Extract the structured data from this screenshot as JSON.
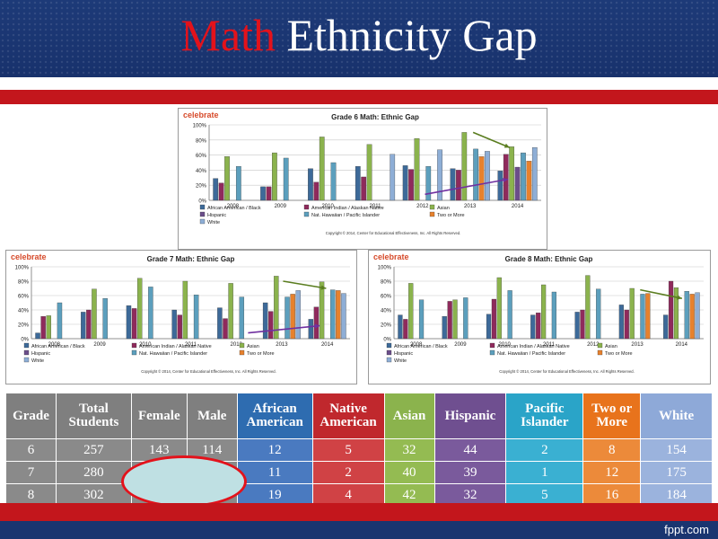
{
  "slide": {
    "title_accent": "Math",
    "title_rest": "Ethnicity Gap",
    "footer": "fppt.com"
  },
  "colors": {
    "title_accent": "#e3121b",
    "band": "#1a3570",
    "bar_red": "#c3161c",
    "series": [
      "#3d6a99",
      "#8f2a5c",
      "#8bb34d",
      "#6b4e8a",
      "#5c9fbd",
      "#e7812d",
      "#8eaed6"
    ],
    "table_header": [
      "#7f7f7f",
      "#7f7f7f",
      "#7f7f7f",
      "#7f7f7f",
      "#2e6cb0",
      "#c0282d",
      "#8bb34d",
      "#6f4f90",
      "#2aa4c8",
      "#e8731c",
      "#8ea9d8"
    ],
    "table_body": [
      "#8a8a8a",
      "#8a8a8a",
      "#8a8a8a",
      "#8a8a8a",
      "#4a7ac0",
      "#d04245",
      "#94bb52",
      "#7a5a9c",
      "#3ab0d2",
      "#ec8a3a",
      "#9bb3dd"
    ]
  },
  "chart_data": [
    {
      "type": "bar",
      "logo": "celebrate",
      "title": "Grade 6 Math: Ethnic Gap",
      "copyright": "Copyright © 2014, Center for Educational Effectiveness, Inc. All Rights Reserved.",
      "categories": [
        "2008",
        "2009",
        "2010",
        "2011",
        "2012",
        "2013",
        "2014"
      ],
      "yticks": [
        "0%",
        "20%",
        "40%",
        "60%",
        "80%",
        "100%"
      ],
      "ylim": [
        0,
        100
      ],
      "legend_position": "bottom",
      "series": [
        {
          "name": "African American / Black",
          "values": [
            29,
            18,
            42,
            45,
            46,
            42,
            39
          ]
        },
        {
          "name": "American Indian / Alaskan Native",
          "values": [
            23,
            18,
            24,
            31,
            41,
            40,
            61
          ]
        },
        {
          "name": "Asian",
          "values": [
            58,
            63,
            84,
            74,
            82,
            90,
            71
          ]
        },
        {
          "name": "Hispanic",
          "values": [
            0,
            0,
            0,
            0,
            0,
            0,
            44
          ]
        },
        {
          "name": "Nat. Hawaiian / Pacific Islander",
          "values": [
            45,
            56,
            50,
            0,
            45,
            68,
            63
          ]
        },
        {
          "name": "Two or More",
          "values": [
            0,
            0,
            0,
            0,
            0,
            58,
            52
          ]
        },
        {
          "name": "White",
          "values": [
            0,
            0,
            0,
            61,
            67,
            65,
            70
          ]
        }
      ]
    },
    {
      "type": "bar",
      "logo": "celebrate",
      "title": "Grade 7 Math: Ethnic Gap",
      "copyright": "Copyright © 2014, Center for Educational Effectiveness, Inc. All Rights Reserved.",
      "categories": [
        "2008",
        "2009",
        "2010",
        "2011",
        "2012",
        "2013",
        "2014"
      ],
      "yticks": [
        "0%",
        "20%",
        "40%",
        "60%",
        "80%",
        "100%"
      ],
      "ylim": [
        0,
        100
      ],
      "legend_position": "bottom",
      "series": [
        {
          "name": "African American / Black",
          "values": [
            8,
            37,
            46,
            40,
            43,
            50,
            27
          ]
        },
        {
          "name": "American Indian / Alaskan Native",
          "values": [
            31,
            40,
            42,
            33,
            28,
            38,
            44
          ]
        },
        {
          "name": "Asian",
          "values": [
            32,
            69,
            84,
            80,
            77,
            87,
            79
          ]
        },
        {
          "name": "Hispanic",
          "values": [
            0,
            0,
            0,
            0,
            0,
            0,
            0
          ]
        },
        {
          "name": "Nat. Hawaiian / Pacific Islander",
          "values": [
            50,
            56,
            72,
            61,
            58,
            58,
            68
          ]
        },
        {
          "name": "Two or More",
          "values": [
            0,
            0,
            0,
            0,
            0,
            62,
            67
          ]
        },
        {
          "name": "White",
          "values": [
            0,
            0,
            0,
            0,
            0,
            67,
            63
          ]
        }
      ]
    },
    {
      "type": "bar",
      "logo": "celebrate",
      "title": "Grade 8 Math: Ethnic Gap",
      "copyright": "Copyright © 2014, Center for Educational Effectiveness, Inc. All Rights Reserved.",
      "categories": [
        "2008",
        "2009",
        "2010",
        "2011",
        "2012",
        "2013",
        "2014"
      ],
      "yticks": [
        "0%",
        "20%",
        "40%",
        "60%",
        "80%",
        "100%"
      ],
      "ylim": [
        0,
        100
      ],
      "legend_position": "bottom",
      "series": [
        {
          "name": "African American / Black",
          "values": [
            33,
            31,
            34,
            33,
            37,
            47,
            33
          ]
        },
        {
          "name": "American Indian / Alaskan Native",
          "values": [
            27,
            52,
            55,
            36,
            40,
            40,
            80
          ]
        },
        {
          "name": "Asian",
          "values": [
            77,
            54,
            85,
            75,
            88,
            70,
            71
          ]
        },
        {
          "name": "Hispanic",
          "values": [
            0,
            0,
            0,
            0,
            0,
            0,
            0
          ]
        },
        {
          "name": "Nat. Hawaiian / Pacific Islander",
          "values": [
            54,
            57,
            67,
            65,
            69,
            62,
            66
          ]
        },
        {
          "name": "Two or More",
          "values": [
            0,
            0,
            0,
            0,
            0,
            63,
            62
          ]
        },
        {
          "name": "White",
          "values": [
            0,
            0,
            0,
            0,
            0,
            0,
            64
          ]
        }
      ]
    }
  ],
  "table": {
    "headers": [
      "Grade",
      "Total Students",
      "Female",
      "Male",
      "African American",
      "Native American",
      "Asian",
      "Hispanic",
      "Pacific Islander",
      "Two or More",
      "White"
    ],
    "rows": [
      [
        "6",
        "257",
        "143",
        "114",
        "12",
        "5",
        "32",
        "44",
        "2",
        "8",
        "154"
      ],
      [
        "7",
        "280",
        "",
        "",
        "11",
        "2",
        "40",
        "39",
        "1",
        "12",
        "175"
      ],
      [
        "8",
        "302",
        "",
        "",
        "19",
        "4",
        "42",
        "32",
        "5",
        "16",
        "184"
      ]
    ]
  }
}
